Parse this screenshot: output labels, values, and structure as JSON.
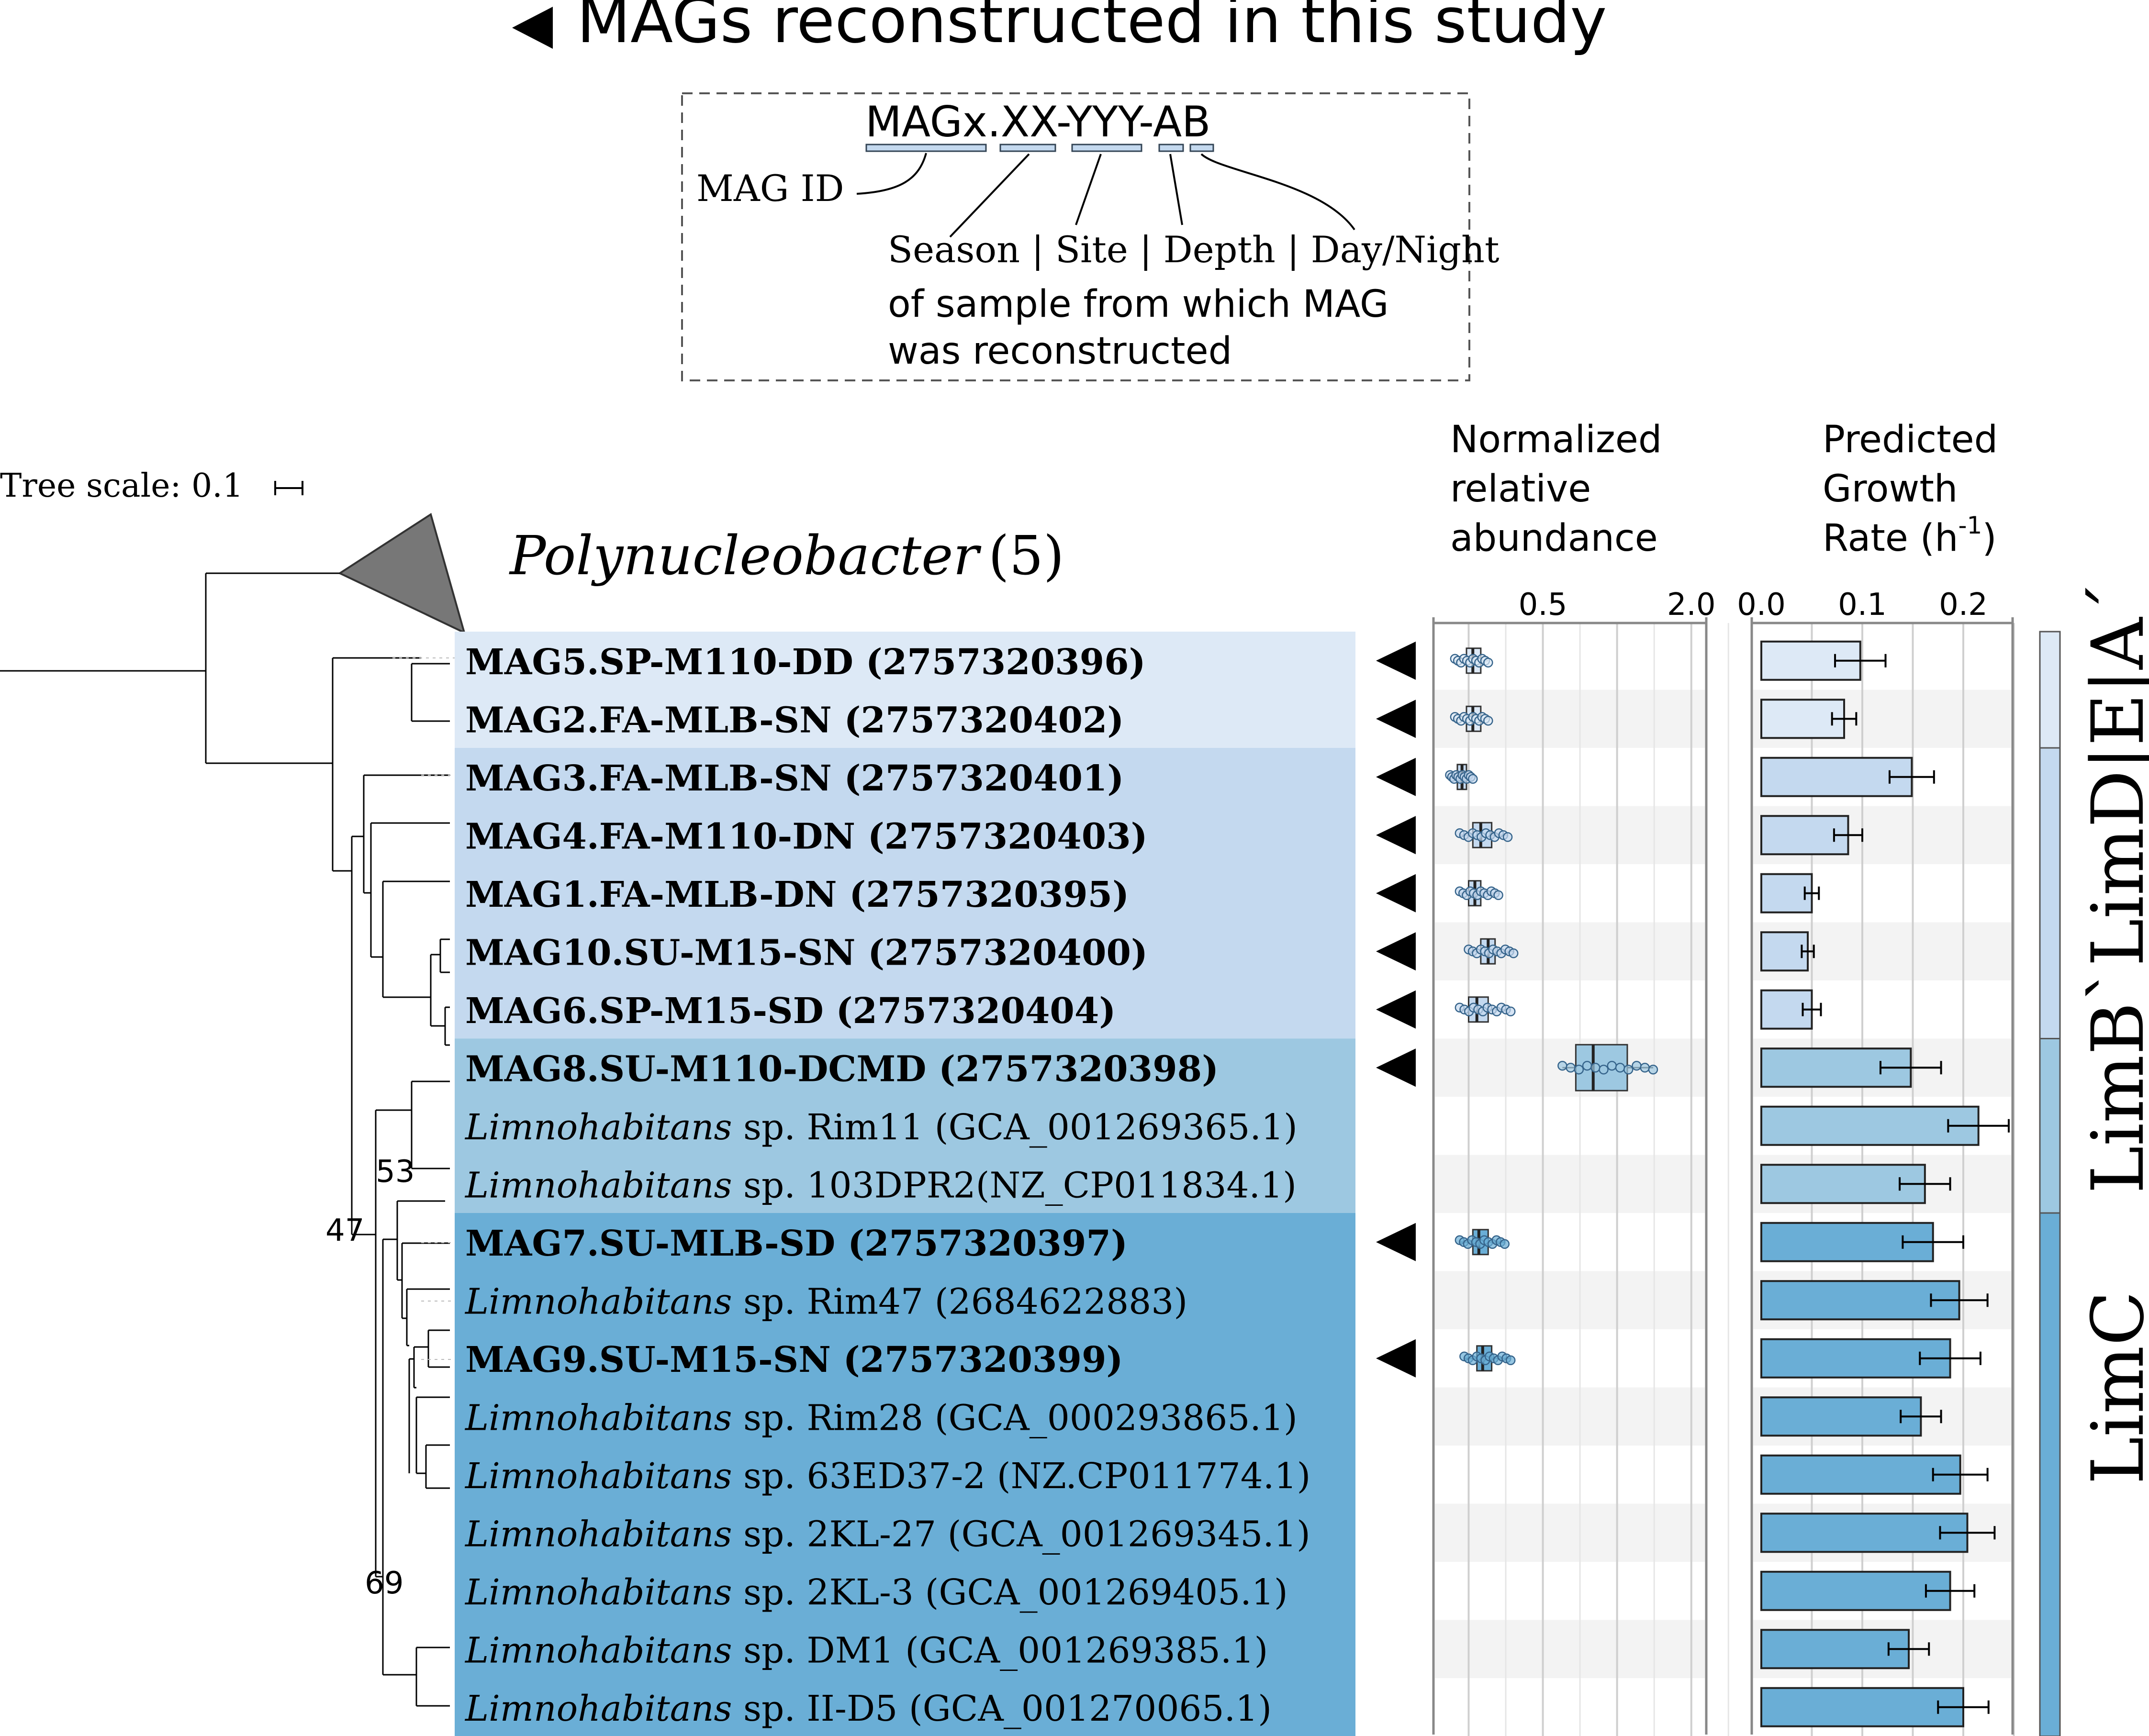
{
  "header": {
    "marker_note": "MAGs reconstructed in this study",
    "colors": {
      "marker": "#000000"
    }
  },
  "legend": {
    "code": "MAGx.XX-YYY-AB",
    "mag_id_label": "MAG ID",
    "fields_label": "Season | Site | Depth | Day/Night",
    "note_line1": "of sample from which MAG",
    "note_line2": "was reconstructed"
  },
  "tree": {
    "scale_label": "Tree scale: 0.1",
    "collapsed_clade_name": "Polynucleobacter",
    "collapsed_clade_count": "(5)",
    "bootstrap": [
      "53",
      "47",
      "69"
    ]
  },
  "columns": {
    "abundance_title": [
      "Normalized",
      "relative",
      "abundance"
    ],
    "abundance_ticks": [
      "0.5",
      "2.0"
    ],
    "growth_title_line1": "Predicted",
    "growth_title_line2": "Growth",
    "growth_title_line3_prefix": "Rate (h",
    "growth_title_sup": "-1",
    "growth_title_suffix": ")",
    "growth_ticks": [
      "0.0",
      "0.1",
      "0.2"
    ]
  },
  "taxa": [
    {
      "genus": "",
      "name": "MAG5.SP-M110-DD (2757320396)",
      "mag": true,
      "group": "A",
      "abund": {
        "min": 0.22,
        "q1": 0.245,
        "med": 0.26,
        "q3": 0.28,
        "max": 0.3
      },
      "growth": 0.098,
      "err": 0.025
    },
    {
      "genus": "",
      "name": "MAG2.FA-MLB-SN (2757320402)",
      "mag": true,
      "group": "A",
      "abund": {
        "min": 0.22,
        "q1": 0.245,
        "med": 0.26,
        "q3": 0.28,
        "max": 0.3
      },
      "growth": 0.082,
      "err": 0.012
    },
    {
      "genus": "",
      "name": "MAG3.FA-MLB-SN (2757320401)",
      "mag": true,
      "group": "B",
      "abund": {
        "min": 0.21,
        "q1": 0.225,
        "med": 0.235,
        "q3": 0.245,
        "max": 0.26
      },
      "growth": 0.149,
      "err": 0.022
    },
    {
      "genus": "",
      "name": "MAG4.FA-M110-DN (2757320403)",
      "mag": true,
      "group": "B",
      "abund": {
        "min": 0.23,
        "q1": 0.26,
        "med": 0.28,
        "q3": 0.31,
        "max": 0.36
      },
      "growth": 0.086,
      "err": 0.014
    },
    {
      "genus": "",
      "name": "MAG1.FA-MLB-DN (2757320395)",
      "mag": true,
      "group": "B",
      "abund": {
        "min": 0.23,
        "q1": 0.25,
        "med": 0.265,
        "q3": 0.28,
        "max": 0.33
      },
      "growth": 0.05,
      "err": 0.007
    },
    {
      "genus": "",
      "name": "MAG10.SU-M15-SN (2757320400)",
      "mag": true,
      "group": "B",
      "abund": {
        "min": 0.25,
        "q1": 0.28,
        "med": 0.3,
        "q3": 0.32,
        "max": 0.38
      },
      "growth": 0.046,
      "err": 0.006
    },
    {
      "genus": "",
      "name": "MAG6.SP-M15-SD (2757320404)",
      "mag": true,
      "group": "B",
      "abund": {
        "min": 0.23,
        "q1": 0.25,
        "med": 0.27,
        "q3": 0.3,
        "max": 0.37
      },
      "growth": 0.05,
      "err": 0.009
    },
    {
      "genus": "",
      "name": "MAG8.SU-M110-DCMD (2757320398)",
      "mag": true,
      "group": "C",
      "abund": {
        "min": 0.6,
        "q1": 0.68,
        "med": 0.8,
        "q3": 1.1,
        "max": 1.4
      },
      "growth": 0.148,
      "err": 0.03
    },
    {
      "genus": "Limnohabitans",
      "name": " sp. Rim11 (GCA_001269365.1)",
      "mag": false,
      "group": "C",
      "abund": null,
      "growth": 0.215,
      "err": 0.03
    },
    {
      "genus": "Limnohabitans",
      "name": " sp. 103DPR2(NZ_CP011834.1)",
      "mag": false,
      "group": "C",
      "abund": null,
      "growth": 0.162,
      "err": 0.025
    },
    {
      "genus": "",
      "name": "MAG7.SU-MLB-SD (2757320397)",
      "mag": true,
      "group": "D",
      "abund": {
        "min": 0.23,
        "q1": 0.26,
        "med": 0.275,
        "q3": 0.3,
        "max": 0.35
      },
      "growth": 0.17,
      "err": 0.03
    },
    {
      "genus": "Limnohabitans",
      "name": " sp. Rim47 (2684622883)",
      "mag": false,
      "group": "D",
      "abund": null,
      "growth": 0.196,
      "err": 0.028
    },
    {
      "genus": "",
      "name": "MAG9.SU-M15-SN (2757320399)",
      "mag": true,
      "group": "D",
      "abund": {
        "min": 0.24,
        "q1": 0.27,
        "med": 0.285,
        "q3": 0.31,
        "max": 0.37
      },
      "growth": 0.187,
      "err": 0.03
    },
    {
      "genus": "Limnohabitans",
      "name": " sp. Rim28 (GCA_000293865.1)",
      "mag": false,
      "group": "D",
      "abund": null,
      "growth": 0.158,
      "err": 0.02
    },
    {
      "genus": "Limnohabitans",
      "name": " sp. 63ED37-2 (NZ.CP011774.1)",
      "mag": false,
      "group": "D",
      "abund": null,
      "growth": 0.197,
      "err": 0.027
    },
    {
      "genus": "Limnohabitans",
      "name": " sp. 2KL-27 (GCA_001269345.1)",
      "mag": false,
      "group": "D",
      "abund": null,
      "growth": 0.204,
      "err": 0.027
    },
    {
      "genus": "Limnohabitans",
      "name": " sp. 2KL-3 (GCA_001269405.1)",
      "mag": false,
      "group": "D",
      "abund": null,
      "growth": 0.187,
      "err": 0.024
    },
    {
      "genus": "Limnohabitans",
      "name": " sp. DM1 (GCA_001269385.1)",
      "mag": false,
      "group": "D",
      "abund": null,
      "growth": 0.146,
      "err": 0.02
    },
    {
      "genus": "Limnohabitans",
      "name": " sp. II-D5 (GCA_001270065.1)",
      "mag": false,
      "group": "D",
      "abund": null,
      "growth": 0.2,
      "err": 0.025
    }
  ],
  "groups": {
    "labels": [
      "LimB`LimD|E|A´",
      "LimC"
    ],
    "colors": {
      "A": "#dde9f6",
      "B": "#c4d9ef",
      "C": "#9dc8e1",
      "D": "#6aaed6"
    }
  }
}
